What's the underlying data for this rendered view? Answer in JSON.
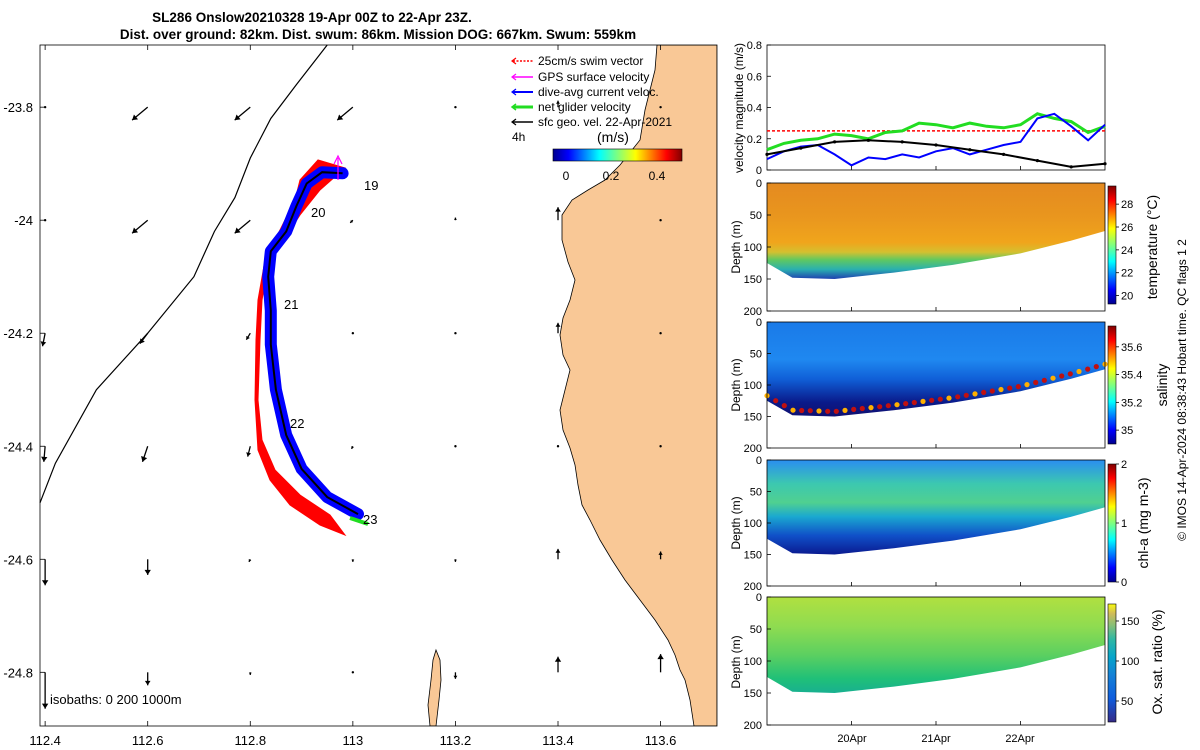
{
  "header": {
    "title_line1": "SL286 Onslow20210328 19-Apr 00Z to 22-Apr 23Z.",
    "title_line2": "Dist. over ground: 82km. Dist. swum: 86km. Mission DOG: 667km. Swum: 559km"
  },
  "colors": {
    "land": "#f9c896",
    "swim": "#ff0000",
    "gps": "#ff00ff",
    "current": "#0000ff",
    "net": "#22dd22",
    "geo": "#000000"
  },
  "map": {
    "legend": [
      {
        "label": "25cm/s swim vector",
        "color": "#ff0000"
      },
      {
        "label": "GPS surface velocity",
        "color": "#ff00ff"
      },
      {
        "label": "dive-avg current veloc.",
        "color": "#0000ff"
      },
      {
        "label": "net glider velocity",
        "color": "#22dd22"
      },
      {
        "label": "sfc geo. vel. 22-Apr-2021",
        "color": "#000000"
      }
    ],
    "interval_label": "4h",
    "colorbar_unit": "(m/s)",
    "colorbar_ticks": [
      "0",
      "0.2",
      "0.4"
    ],
    "isobaths_label": "isobaths: 0   200  1000m",
    "day_labels": [
      "19",
      "20",
      "21",
      "22",
      "23"
    ]
  },
  "chart_data": [
    {
      "type": "map",
      "title": "SL286 Onslow20210328 19-Apr 00Z to 22-Apr 23Z.",
      "xlim": [
        112.39,
        113.71
      ],
      "ylim": [
        -24.895,
        -23.69
      ],
      "xticks": [
        112.4,
        112.6,
        112.8,
        113,
        113.2,
        113.4,
        113.6
      ],
      "xtick_labels": [
        "112.4",
        "112.6",
        "112.8",
        "113",
        "113.2",
        "113.4",
        "113.6"
      ],
      "yticks": [
        -23.8,
        -24.0,
        -24.2,
        -24.4,
        -24.6,
        -24.8
      ],
      "ytick_labels": [
        "-23.8",
        "-24",
        "-24.2",
        "-24.4",
        "-24.6",
        "-24.8"
      ],
      "track": [
        [
          112.98,
          -23.917
        ],
        [
          112.94,
          -23.915
        ],
        [
          112.91,
          -23.935
        ],
        [
          112.89,
          -23.975
        ],
        [
          112.87,
          -24.02
        ],
        [
          112.84,
          -24.055
        ],
        [
          112.835,
          -24.1
        ],
        [
          112.84,
          -24.16
        ],
        [
          112.84,
          -24.22
        ],
        [
          112.85,
          -24.3
        ],
        [
          112.87,
          -24.38
        ],
        [
          112.9,
          -24.44
        ],
        [
          112.95,
          -24.49
        ],
        [
          113.01,
          -24.52
        ]
      ],
      "day_points": [
        {
          "label": "19",
          "lon": 113.0,
          "lat": -23.92
        },
        {
          "label": "20",
          "lon": 112.91,
          "lat": -23.98
        },
        {
          "label": "21",
          "lon": 112.86,
          "lat": -24.15
        },
        {
          "label": "22",
          "lon": 112.88,
          "lat": -24.37
        },
        {
          "label": "23",
          "lon": 113.02,
          "lat": -24.52
        }
      ],
      "isobath_1000m": [
        [
          112.39,
          -24.5
        ],
        [
          112.42,
          -24.43
        ],
        [
          112.5,
          -24.3
        ],
        [
          112.6,
          -24.2
        ],
        [
          112.69,
          -24.1
        ],
        [
          112.73,
          -24.02
        ],
        [
          112.77,
          -23.96
        ],
        [
          112.8,
          -23.89
        ],
        [
          112.84,
          -23.82
        ],
        [
          112.89,
          -23.76
        ],
        [
          112.95,
          -23.69
        ]
      ],
      "geo_velocity_grid": {
        "lons": [
          112.4,
          112.6,
          112.8,
          113.0,
          113.2,
          113.4,
          113.6
        ],
        "lats": [
          -23.8,
          -24.0,
          -24.2,
          -24.4,
          -24.6,
          -24.8
        ],
        "u_ms": [
          [
            0.0,
            -0.12,
            -0.12,
            -0.12,
            -0.01,
            0.0,
            0.0
          ],
          [
            0.0,
            -0.12,
            -0.12,
            -0.02,
            0.0,
            0.0,
            0.0
          ],
          [
            -0.02,
            -0.06,
            -0.03,
            -0.01,
            0.0,
            0.0,
            0.0
          ],
          [
            -0.01,
            -0.04,
            -0.02,
            -0.01,
            0.0,
            0.0,
            0.0
          ],
          [
            0.0,
            0.0,
            -0.01,
            0.0,
            0.0,
            0.0,
            0.0
          ],
          [
            0.0,
            0.0,
            0.0,
            0.0,
            0.0,
            0.0,
            0.0
          ]
        ],
        "v_ms": [
          [
            0.0,
            -0.1,
            -0.1,
            -0.1,
            0.0,
            0.05,
            0.0
          ],
          [
            0.0,
            -0.1,
            -0.1,
            -0.02,
            0.02,
            0.1,
            0.0
          ],
          [
            -0.1,
            -0.08,
            -0.05,
            -0.01,
            0.0,
            0.08,
            0.0
          ],
          [
            -0.12,
            -0.12,
            -0.08,
            -0.02,
            0.0,
            0.0,
            0.0
          ],
          [
            -0.2,
            -0.12,
            -0.02,
            -0.02,
            -0.02,
            0.08,
            0.06
          ],
          [
            -0.28,
            -0.1,
            -0.02,
            0.0,
            -0.05,
            0.12,
            0.14
          ]
        ]
      }
    },
    {
      "type": "line",
      "ylabel": "velocity magnitude (m/s)",
      "ylim": [
        0,
        0.8
      ],
      "yticks": [
        0,
        0.2,
        0.4,
        0.6,
        0.8
      ],
      "xlim": [
        0,
        4
      ],
      "series": [
        {
          "name": "swim speed (25cm/s)",
          "color": "#ff0000",
          "x": [
            0,
            4
          ],
          "values": [
            0.25,
            0.25
          ]
        },
        {
          "name": "net glider velocity",
          "color": "#22dd22",
          "x": [
            0,
            0.2,
            0.4,
            0.6,
            0.8,
            1.0,
            1.2,
            1.4,
            1.6,
            1.8,
            2.0,
            2.2,
            2.4,
            2.6,
            2.8,
            3.0,
            3.2,
            3.4,
            3.6,
            3.8,
            4.0
          ],
          "values": [
            0.13,
            0.17,
            0.19,
            0.2,
            0.23,
            0.22,
            0.2,
            0.24,
            0.25,
            0.3,
            0.29,
            0.27,
            0.3,
            0.28,
            0.27,
            0.29,
            0.36,
            0.33,
            0.31,
            0.24,
            0.28
          ]
        },
        {
          "name": "dive-avg current",
          "color": "#0000ff",
          "x": [
            0,
            0.2,
            0.4,
            0.6,
            0.8,
            1.0,
            1.2,
            1.4,
            1.6,
            1.8,
            2.0,
            2.2,
            2.4,
            2.6,
            2.8,
            3.0,
            3.2,
            3.4,
            3.6,
            3.8,
            4.0
          ],
          "values": [
            0.07,
            0.12,
            0.15,
            0.16,
            0.1,
            0.03,
            0.08,
            0.07,
            0.1,
            0.08,
            0.12,
            0.14,
            0.1,
            0.13,
            0.16,
            0.18,
            0.33,
            0.36,
            0.28,
            0.19,
            0.29
          ]
        },
        {
          "name": "sfc geo. velocity",
          "color": "#000000",
          "x": [
            0,
            0.4,
            0.8,
            1.2,
            1.6,
            2.0,
            2.4,
            2.8,
            3.2,
            3.6,
            4.0
          ],
          "values": [
            0.1,
            0.14,
            0.18,
            0.19,
            0.18,
            0.16,
            0.13,
            0.1,
            0.06,
            0.02,
            0.04
          ]
        }
      ]
    },
    {
      "type": "heatmap",
      "ylabel": "Depth (m)",
      "cblabel": "temperature (°C)",
      "ylim": [
        0,
        200
      ],
      "yticks": [
        0,
        50,
        100,
        150,
        200
      ],
      "clim": [
        19,
        29.5
      ],
      "cticks": [
        20,
        22,
        24,
        26,
        28
      ],
      "bottom_depth_x": [
        0,
        0.3,
        0.8,
        1.5,
        2.2,
        3.0,
        3.6,
        4.0
      ],
      "bottom_depth_m": [
        125,
        148,
        150,
        140,
        128,
        110,
        90,
        75
      ]
    },
    {
      "type": "heatmap",
      "ylabel": "Depth (m)",
      "cblabel": "salinity",
      "ylim": [
        0,
        200
      ],
      "yticks": [
        0,
        50,
        100,
        150,
        200
      ],
      "clim": [
        34.9,
        35.75
      ],
      "cticks": [
        35,
        35.2,
        35.4,
        35.6
      ]
    },
    {
      "type": "heatmap",
      "ylabel": "Depth (m)",
      "cblabel": "chl-a (mg m-3)",
      "ylim": [
        0,
        200
      ],
      "yticks": [
        0,
        50,
        100,
        150,
        200
      ],
      "clim": [
        0,
        2
      ],
      "cticks": [
        0,
        1,
        2
      ]
    },
    {
      "type": "heatmap",
      "ylabel": "Depth (m)",
      "cblabel": "Ox. sat. ratio (%)",
      "ylim": [
        0,
        200
      ],
      "yticks": [
        0,
        50,
        100,
        150,
        200
      ],
      "clim": [
        25,
        175
      ],
      "cticks": [
        50,
        100,
        150
      ],
      "xtick_labels": [
        "20Apr",
        "21Apr",
        "22Apr"
      ]
    }
  ],
  "footer": {
    "side_note": "© IMOS 14-Apr-2024 08:38:43 Hobart time. QC flags 1  2"
  }
}
